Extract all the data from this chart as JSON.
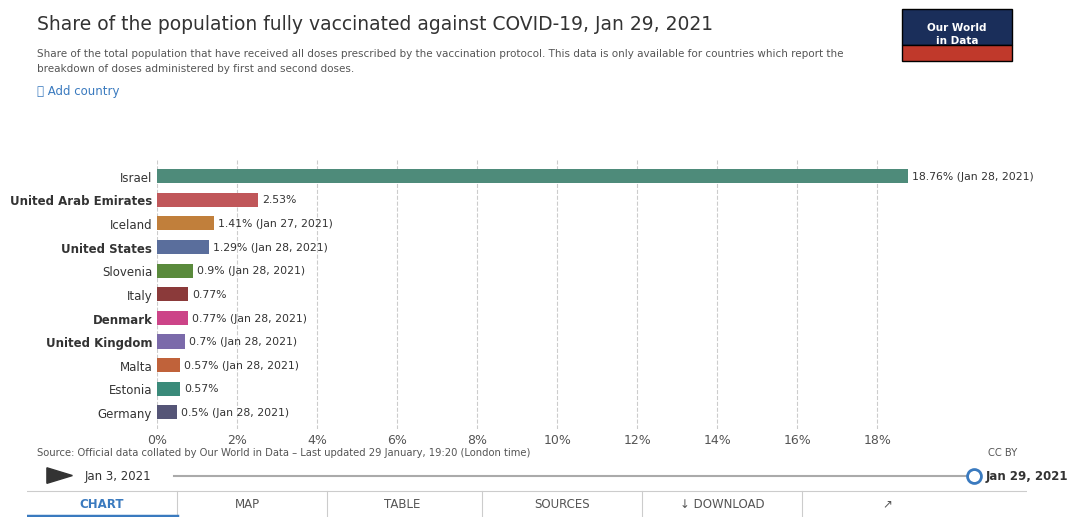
{
  "title": "Share of the population fully vaccinated against COVID-19, Jan 29, 2021",
  "subtitle_line1": "Share of the total population that have received all doses prescribed by the vaccination protocol. This data is only available for countries which report the",
  "subtitle_line2": "breakdown of doses administered by first and second doses.",
  "countries": [
    "Israel",
    "United Arab Emirates",
    "Iceland",
    "United States",
    "Slovenia",
    "Italy",
    "Denmark",
    "United Kingdom",
    "Malta",
    "Estonia",
    "Germany"
  ],
  "values": [
    18.76,
    2.53,
    1.41,
    1.29,
    0.9,
    0.77,
    0.77,
    0.7,
    0.57,
    0.57,
    0.5
  ],
  "labels": [
    "18.76% (Jan 28, 2021)",
    "2.53%",
    "1.41% (Jan 27, 2021)",
    "1.29% (Jan 28, 2021)",
    "0.9% (Jan 28, 2021)",
    "0.77%",
    "0.77% (Jan 28, 2021)",
    "0.7% (Jan 28, 2021)",
    "0.57% (Jan 28, 2021)",
    "0.57%",
    "0.5% (Jan 28, 2021)"
  ],
  "colors": [
    "#4e8b7a",
    "#c0575a",
    "#c17f3b",
    "#5a6e9c",
    "#5a8a3c",
    "#8b3a3a",
    "#cc4488",
    "#7b6aaa",
    "#c0623a",
    "#3a8a7a",
    "#555577"
  ],
  "bold_countries": [
    "United Arab Emirates",
    "United States",
    "Denmark",
    "United Kingdom"
  ],
  "x_ticks": [
    0,
    2,
    4,
    6,
    8,
    10,
    12,
    14,
    16,
    18
  ],
  "x_tick_labels": [
    "0%",
    "2%",
    "4%",
    "6%",
    "8%",
    "10%",
    "12%",
    "14%",
    "16%",
    "18%"
  ],
  "x_max": 20,
  "source_text": "Source: Official data collated by Our World in Data – Last updated 29 January, 19:20 (London time)",
  "cc_by_text": "CC BY",
  "add_country_text": "➕ Add country",
  "slider_left": "Jan 3, 2021",
  "slider_right": "Jan 29, 2021",
  "nav_items": [
    "CHART",
    "MAP",
    "TABLE",
    "SOURCES",
    "↓ DOWNLOAD",
    "↗"
  ],
  "bg_color": "#ffffff",
  "chart_bg": "#ffffff",
  "grid_color": "#cccccc",
  "title_color": "#333333",
  "subtitle_color": "#555555",
  "logo_bg_top": "#1a2e5a",
  "logo_bg_bottom": "#c0392b"
}
